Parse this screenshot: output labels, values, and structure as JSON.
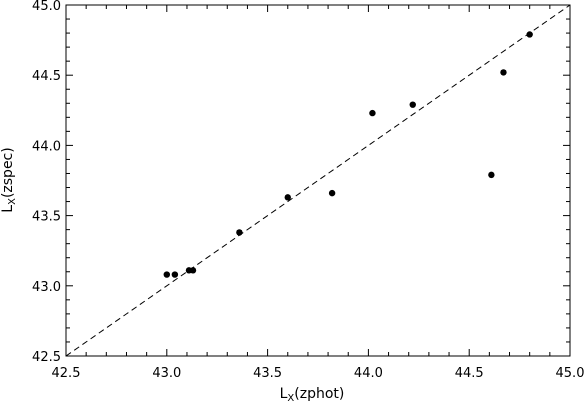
{
  "chart_data": {
    "type": "scatter",
    "title": "",
    "xlabel": {
      "main": "L",
      "sub": "X",
      "rest": "(zphot)"
    },
    "ylabel": {
      "main": "L",
      "sub": "X",
      "rest": "(zspec)"
    },
    "xlim": [
      42.5,
      45.0
    ],
    "ylim": [
      42.5,
      45.0
    ],
    "x_ticks": [
      "42.5",
      "43.0",
      "43.5",
      "44.0",
      "44.5",
      "45.0"
    ],
    "y_ticks": [
      "42.5",
      "43.0",
      "43.5",
      "44.0",
      "44.5",
      "45.0"
    ],
    "grid": false,
    "reference_line": {
      "style": "dashed",
      "slope": 1,
      "intercept": 0
    },
    "points": [
      {
        "x": 43.0,
        "y": 43.08
      },
      {
        "x": 43.04,
        "y": 43.08
      },
      {
        "x": 43.11,
        "y": 43.11
      },
      {
        "x": 43.13,
        "y": 43.11
      },
      {
        "x": 43.36,
        "y": 43.38
      },
      {
        "x": 43.6,
        "y": 43.63
      },
      {
        "x": 43.82,
        "y": 43.66
      },
      {
        "x": 44.02,
        "y": 44.23
      },
      {
        "x": 44.22,
        "y": 44.29
      },
      {
        "x": 44.61,
        "y": 43.79
      },
      {
        "x": 44.67,
        "y": 44.52
      },
      {
        "x": 44.8,
        "y": 44.79
      }
    ]
  }
}
